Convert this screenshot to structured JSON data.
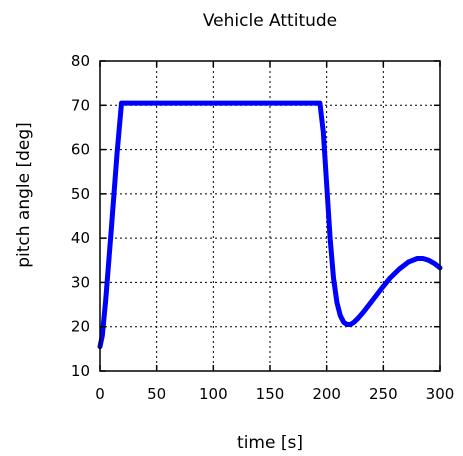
{
  "chart_data": {
    "type": "line",
    "title": "Vehicle Attitude",
    "xlabel": "time [s]",
    "ylabel": "pitch angle [deg]",
    "xlim": [
      0,
      300
    ],
    "ylim": [
      10,
      80
    ],
    "xticks": [
      0,
      50,
      100,
      150,
      200,
      250,
      300
    ],
    "yticks": [
      10,
      20,
      30,
      40,
      50,
      60,
      70,
      80
    ],
    "grid": true,
    "series": [
      {
        "color": "#0000ff",
        "x": [
          0,
          2,
          5,
          10,
          15,
          19,
          50,
          100,
          150,
          190,
          194,
          197,
          200,
          203,
          206,
          209,
          212,
          215,
          218,
          221,
          224,
          228,
          233,
          240,
          248,
          256,
          264,
          272,
          280,
          285,
          290,
          295,
          300
        ],
        "y": [
          15.5,
          18,
          26,
          42,
          59,
          70.5,
          70.5,
          70.5,
          70.5,
          70.5,
          70.5,
          64,
          52,
          40,
          31,
          25.5,
          22.5,
          21,
          20.5,
          20.5,
          21,
          22,
          23.5,
          25.8,
          28.5,
          31,
          33,
          34.6,
          35.4,
          35.4,
          35,
          34.3,
          33.3
        ]
      }
    ]
  }
}
